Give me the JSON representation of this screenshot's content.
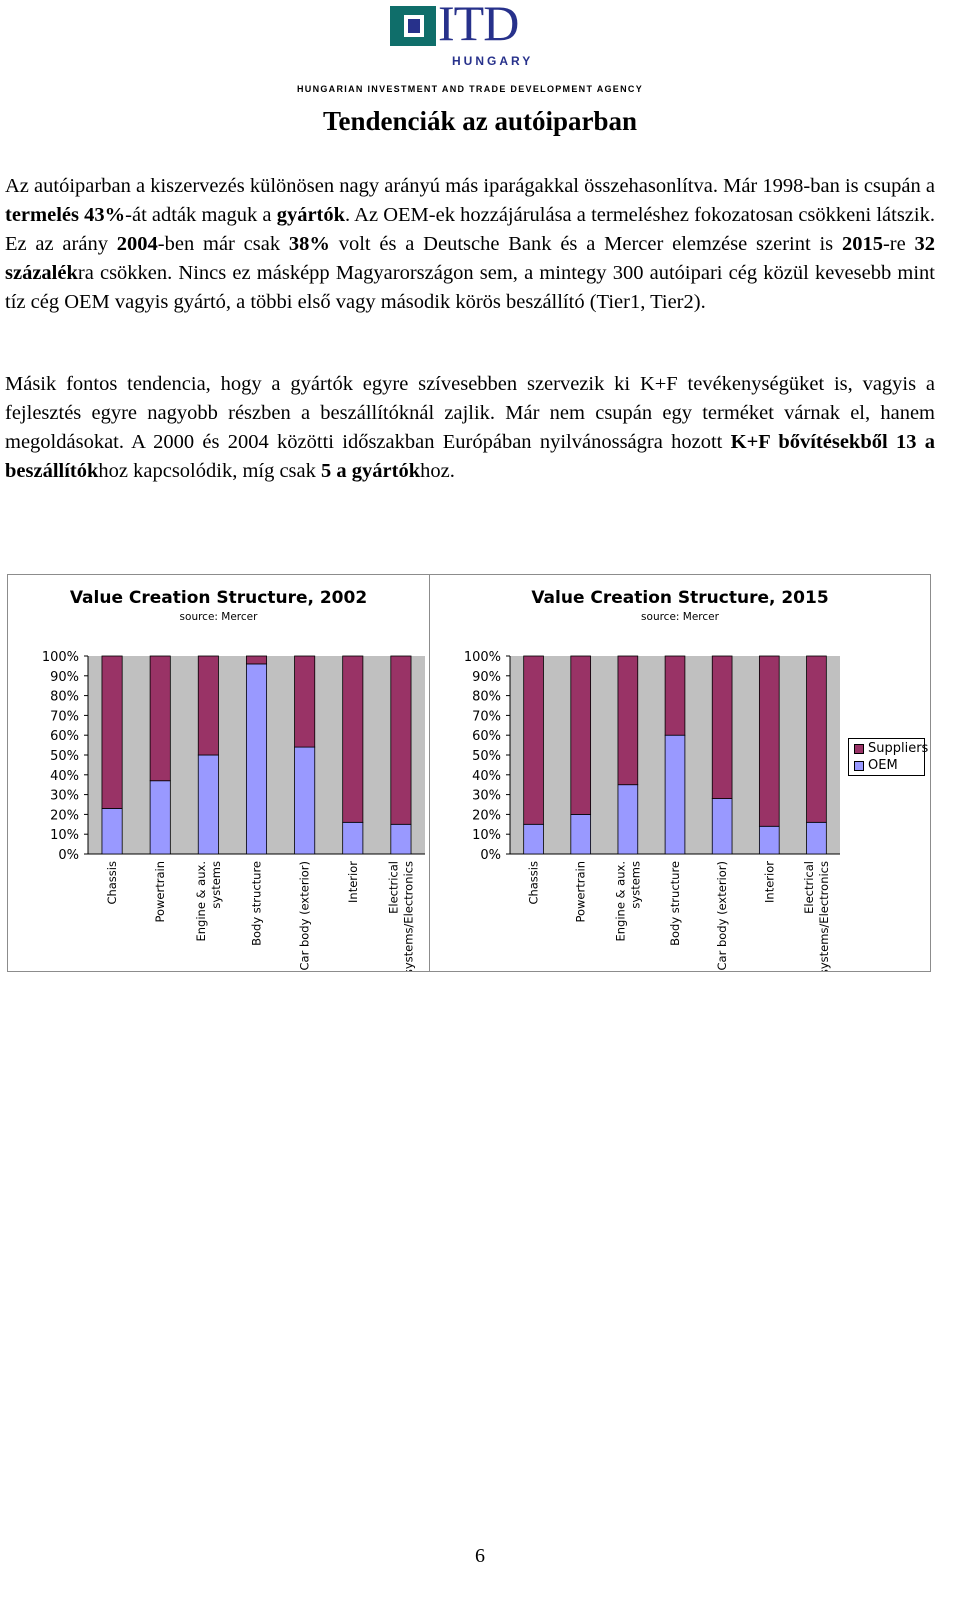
{
  "header": {
    "logo_word": "ITD",
    "logo_sub": "HUNGARY",
    "agency": "HUNGARIAN INVESTMENT AND TRADE DEVELOPMENT AGENCY"
  },
  "title": "Tendenciák az autóiparban",
  "paragraph1": {
    "s1": "Az autóiparban a kiszervezés különösen nagy arányú más iparágakkal összehasonlítva. Már 1998-ban is csupán a ",
    "b1": "termelés 43%",
    "s2": "-át adták maguk a ",
    "b2": "gyártók",
    "s3": ". Az OEM-ek hozzájárulása a termeléshez fokozatosan csökkeni látszik. Ez az arány ",
    "b3": "2004",
    "s4": "-ben már csak ",
    "b4": "38%",
    "s5": " volt és a Deutsche Bank és a Mercer elemzése szerint is ",
    "b5": "2015",
    "s6": "-re ",
    "b6": "32 százalék",
    "s7": "ra csökken. Nincs ez másképp Magyarországon sem, a mintegy 300 autóipari cég közül kevesebb mint tíz cég OEM vagyis gyártó, a többi első vagy második körös beszállító (Tier1, Tier2)."
  },
  "paragraph2": {
    "s1": "Másik fontos tendencia, hogy a gyártók egyre szívesebben szervezik ki K+F tevékenységüket is, vagyis a fejlesztés egyre nagyobb részben a beszállítóknál zajlik. Már nem csupán egy terméket várnak el, hanem megoldásokat. A 2000 és 2004 közötti időszakban Európában nyilvánosságra hozott ",
    "b1": "K+F bővítésekből 13 a beszállítók",
    "s2": "hoz kapcsolódik, míg csak ",
    "b2": "5 a gyártók",
    "s3": "hoz."
  },
  "chart_data": [
    {
      "type": "bar",
      "stacked": true,
      "title": "Value Creation Structure, 2002",
      "subtitle": "source: Mercer",
      "categories": [
        "Chassis",
        "Powertrain",
        "Engine & aux. systems",
        "Body structure",
        "Car body (exterior)",
        "Interior",
        "Electrical systems/Electronics"
      ],
      "series": [
        {
          "name": "OEM",
          "color": "#9999ff",
          "values": [
            23,
            37,
            50,
            96,
            54,
            16,
            15
          ]
        },
        {
          "name": "Suppliers",
          "color": "#993366",
          "values": [
            77,
            63,
            50,
            4,
            46,
            84,
            85
          ]
        }
      ],
      "yticks": [
        "0%",
        "10%",
        "20%",
        "30%",
        "40%",
        "50%",
        "60%",
        "70%",
        "80%",
        "90%",
        "100%"
      ],
      "ylim": [
        0,
        100
      ]
    },
    {
      "type": "bar",
      "stacked": true,
      "title": "Value Creation Structure, 2015",
      "subtitle": "source: Mercer",
      "categories": [
        "Chassis",
        "Powertrain",
        "Engine & aux. systems",
        "Body structure",
        "Car body (exterior)",
        "Interior",
        "Electrical systems/Electronics"
      ],
      "series": [
        {
          "name": "OEM",
          "color": "#9999ff",
          "values": [
            15,
            20,
            35,
            60,
            28,
            14,
            16
          ]
        },
        {
          "name": "Suppliers",
          "color": "#993366",
          "values": [
            85,
            80,
            65,
            40,
            72,
            86,
            84
          ]
        }
      ],
      "yticks": [
        "0%",
        "10%",
        "20%",
        "30%",
        "40%",
        "50%",
        "60%",
        "70%",
        "80%",
        "90%",
        "100%"
      ],
      "ylim": [
        0,
        100
      ],
      "legend": "right"
    }
  ],
  "legend": {
    "suppliers": "Suppliers",
    "oem": "OEM",
    "suppliers_color": "#993366",
    "oem_color": "#9999ff"
  },
  "page_number": "6"
}
